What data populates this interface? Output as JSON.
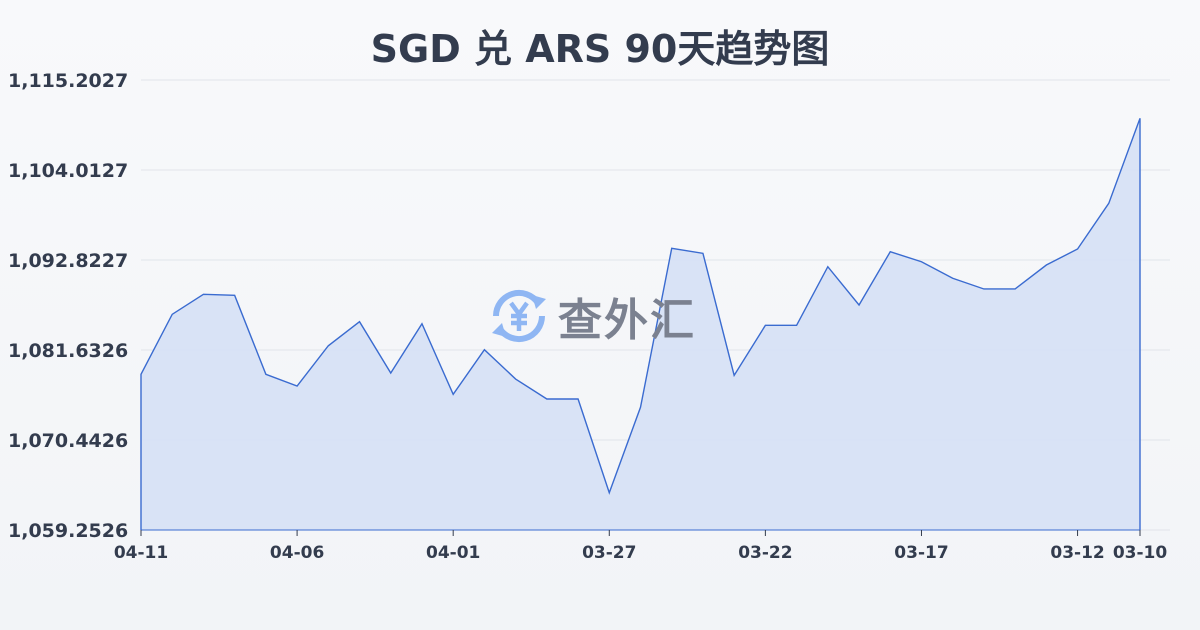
{
  "chart_data": {
    "type": "area",
    "title": "SGD 兑 ARS 90天趋势图",
    "x": [
      "04-11",
      "04-10",
      "04-09",
      "04-08",
      "04-07",
      "04-06",
      "04-05",
      "04-04",
      "04-03",
      "04-02",
      "04-01",
      "03-31",
      "03-30",
      "03-29",
      "03-28",
      "03-27",
      "03-26",
      "03-25",
      "03-24",
      "03-23",
      "03-22",
      "03-21",
      "03-20",
      "03-19",
      "03-18",
      "03-17",
      "03-16",
      "03-15",
      "03-14",
      "03-13",
      "03-12",
      "03-11",
      "03-10"
    ],
    "values": [
      1078.61,
      1086.07,
      1088.56,
      1088.43,
      1078.61,
      1077.15,
      1082.16,
      1085.15,
      1078.77,
      1084.9,
      1076.12,
      1081.67,
      1078.02,
      1075.54,
      1075.54,
      1063.89,
      1074.51,
      1094.27,
      1093.65,
      1078.48,
      1084.7,
      1084.7,
      1091.99,
      1087.23,
      1093.85,
      1092.61,
      1090.55,
      1089.22,
      1089.22,
      1092.2,
      1094.19,
      1099.87,
      1110.44
    ],
    "ylim": [
      1059.2526,
      1115.2027
    ],
    "y_ticks": [
      "1,059.2526",
      "1,070.4426",
      "1,081.6326",
      "1,092.8227",
      "1,104.0127",
      "1,115.2027"
    ],
    "x_ticks": [
      "04-11",
      "04-06",
      "04-01",
      "03-27",
      "03-22",
      "03-17",
      "03-12",
      "03-10"
    ],
    "grid": true,
    "line_color": "#3a6bd0",
    "fill_color": "#d7e1f5"
  },
  "watermark": {
    "text": "查外汇",
    "icon": "yen-exchange-icon",
    "icon_color": "#8fb6f3"
  }
}
